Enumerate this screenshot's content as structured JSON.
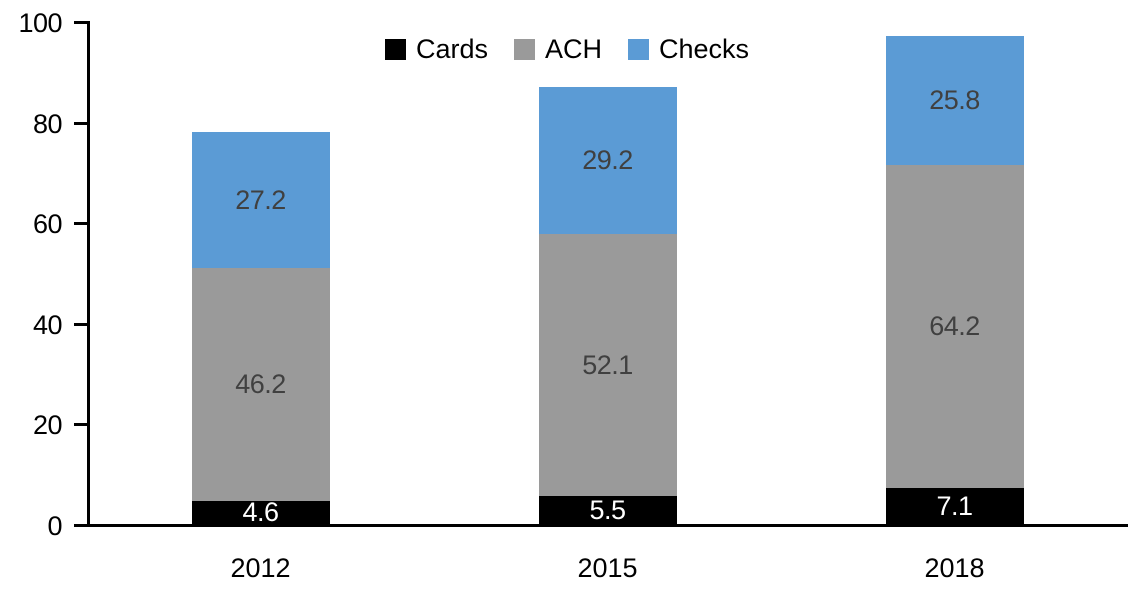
{
  "chart_data": {
    "type": "bar",
    "stacked": true,
    "title": "",
    "xlabel": "",
    "ylabel": "",
    "categories": [
      "2012",
      "2015",
      "2018"
    ],
    "series": [
      {
        "name": "Cards",
        "color": "#000000",
        "label_color": "#ffffff",
        "values": [
          4.6,
          5.5,
          7.1
        ]
      },
      {
        "name": "ACH",
        "color": "#9a9a9a",
        "label_color": "#404040",
        "values": [
          46.2,
          52.1,
          64.2
        ]
      },
      {
        "name": "Checks",
        "color": "#5b9bd5",
        "label_color": "#404040",
        "values": [
          27.2,
          29.2,
          25.8
        ]
      }
    ],
    "totals": [
      78.0,
      86.8,
      97.1
    ],
    "ylim": [
      0,
      100
    ],
    "yticks": [
      "0",
      "20",
      "40",
      "60",
      "80",
      "100"
    ],
    "grid": false,
    "legend_position": "top-center",
    "axis_color": "#000000",
    "background_color": "#ffffff"
  }
}
